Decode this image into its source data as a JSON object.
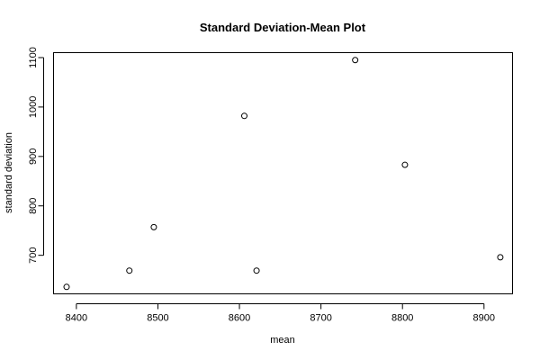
{
  "chart_data": {
    "type": "scatter",
    "title": "Standard Deviation-Mean Plot",
    "xlabel": "mean",
    "ylabel": "standard deviation",
    "xlim": [
      8372,
      8935
    ],
    "ylim": [
      622,
      1110
    ],
    "xticks": [
      8400,
      8500,
      8600,
      8700,
      8800,
      8900
    ],
    "yticks": [
      700,
      800,
      900,
      1000,
      1100
    ],
    "grid": false,
    "legend": "none",
    "point_color": "#000000",
    "points": [
      {
        "x": 8388,
        "y": 636
      },
      {
        "x": 8465,
        "y": 669
      },
      {
        "x": 8495,
        "y": 757
      },
      {
        "x": 8606,
        "y": 982
      },
      {
        "x": 8621,
        "y": 669
      },
      {
        "x": 8742,
        "y": 1095
      },
      {
        "x": 8803,
        "y": 883
      },
      {
        "x": 8920,
        "y": 696
      }
    ]
  }
}
